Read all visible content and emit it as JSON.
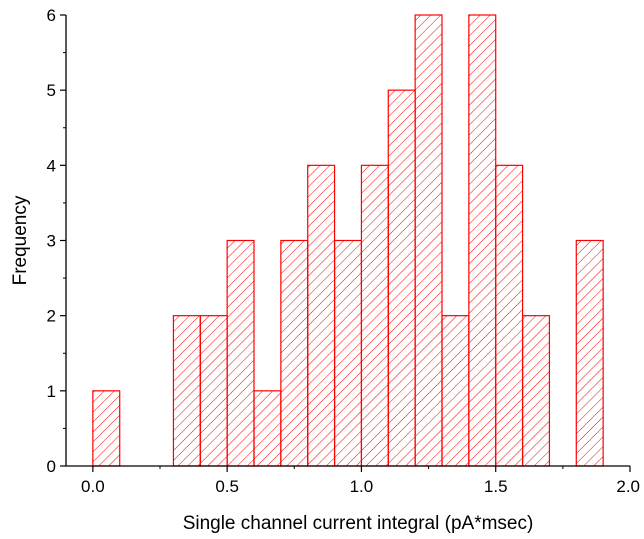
{
  "chart_data": {
    "type": "bar",
    "subtype": "histogram",
    "title": "",
    "xlabel": "Single channel current integral (pA*msec)",
    "ylabel": "Frequency",
    "xlim": [
      -0.1,
      2.0
    ],
    "ylim": [
      0,
      6
    ],
    "x_ticks": [
      "0.0",
      "0.5",
      "1.0",
      "1.5",
      "2.0"
    ],
    "y_ticks": [
      "0",
      "1",
      "2",
      "3",
      "4",
      "5",
      "6"
    ],
    "bin_width": 0.1,
    "bins": [
      {
        "start": 0.0,
        "value": 1
      },
      {
        "start": 0.1,
        "value": 0
      },
      {
        "start": 0.2,
        "value": 0
      },
      {
        "start": 0.3,
        "value": 2
      },
      {
        "start": 0.4,
        "value": 2
      },
      {
        "start": 0.5,
        "value": 3
      },
      {
        "start": 0.6,
        "value": 1
      },
      {
        "start": 0.7,
        "value": 3
      },
      {
        "start": 0.8,
        "value": 4
      },
      {
        "start": 0.9,
        "value": 3
      },
      {
        "start": 1.0,
        "value": 4
      },
      {
        "start": 1.1,
        "value": 5
      },
      {
        "start": 1.2,
        "value": 6
      },
      {
        "start": 1.3,
        "value": 2
      },
      {
        "start": 1.4,
        "value": 6
      },
      {
        "start": 1.5,
        "value": 4
      },
      {
        "start": 1.6,
        "value": 2
      },
      {
        "start": 1.7,
        "value": 0
      },
      {
        "start": 1.8,
        "value": 3
      }
    ],
    "bar_color": "#ff0000",
    "hatch": "diagonal",
    "grid": false,
    "legend": "none"
  }
}
